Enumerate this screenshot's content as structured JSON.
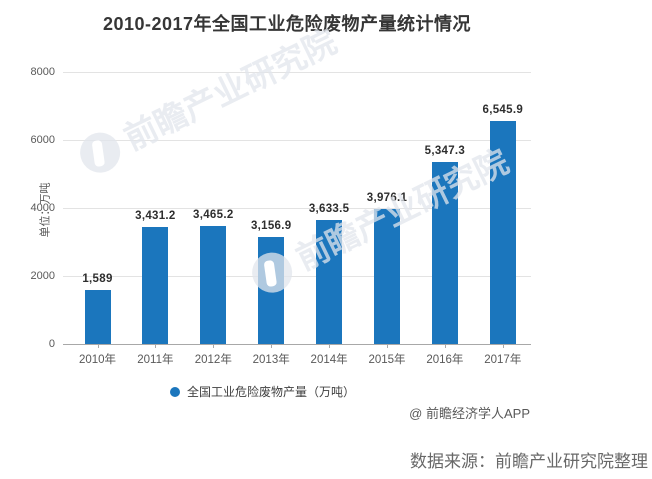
{
  "title": "2010-2017年全国工业危险废物产量统计情况",
  "chart_data": {
    "type": "bar",
    "categories": [
      "2010年",
      "2011年",
      "2012年",
      "2013年",
      "2014年",
      "2015年",
      "2016年",
      "2017年"
    ],
    "values": [
      1589,
      3431.2,
      3465.2,
      3156.9,
      3633.5,
      3976.1,
      5347.3,
      6545.9
    ],
    "value_labels": [
      "1,589",
      "3,431.2",
      "3,465.2",
      "3,156.9",
      "3,633.5",
      "3,976.1",
      "5,347.3",
      "6,545.9"
    ],
    "title": "2010-2017年全国工业危险废物产量统计情况",
    "xlabel": "",
    "ylabel": "单位：万吨",
    "ylim": [
      0,
      8000
    ],
    "yticks": [
      0,
      2000,
      4000,
      6000,
      8000
    ],
    "grid": "horizontal",
    "legend_position": "bottom",
    "legend": "全国工业危险废物产量（万吨）",
    "bar_color": "#1b76bd"
  },
  "watermark": {
    "brand": "前瞻产业研究院"
  },
  "footer": {
    "credit": "@ 前瞻经济学人APP",
    "source": "数据来源：前瞻产业研究院整理"
  }
}
